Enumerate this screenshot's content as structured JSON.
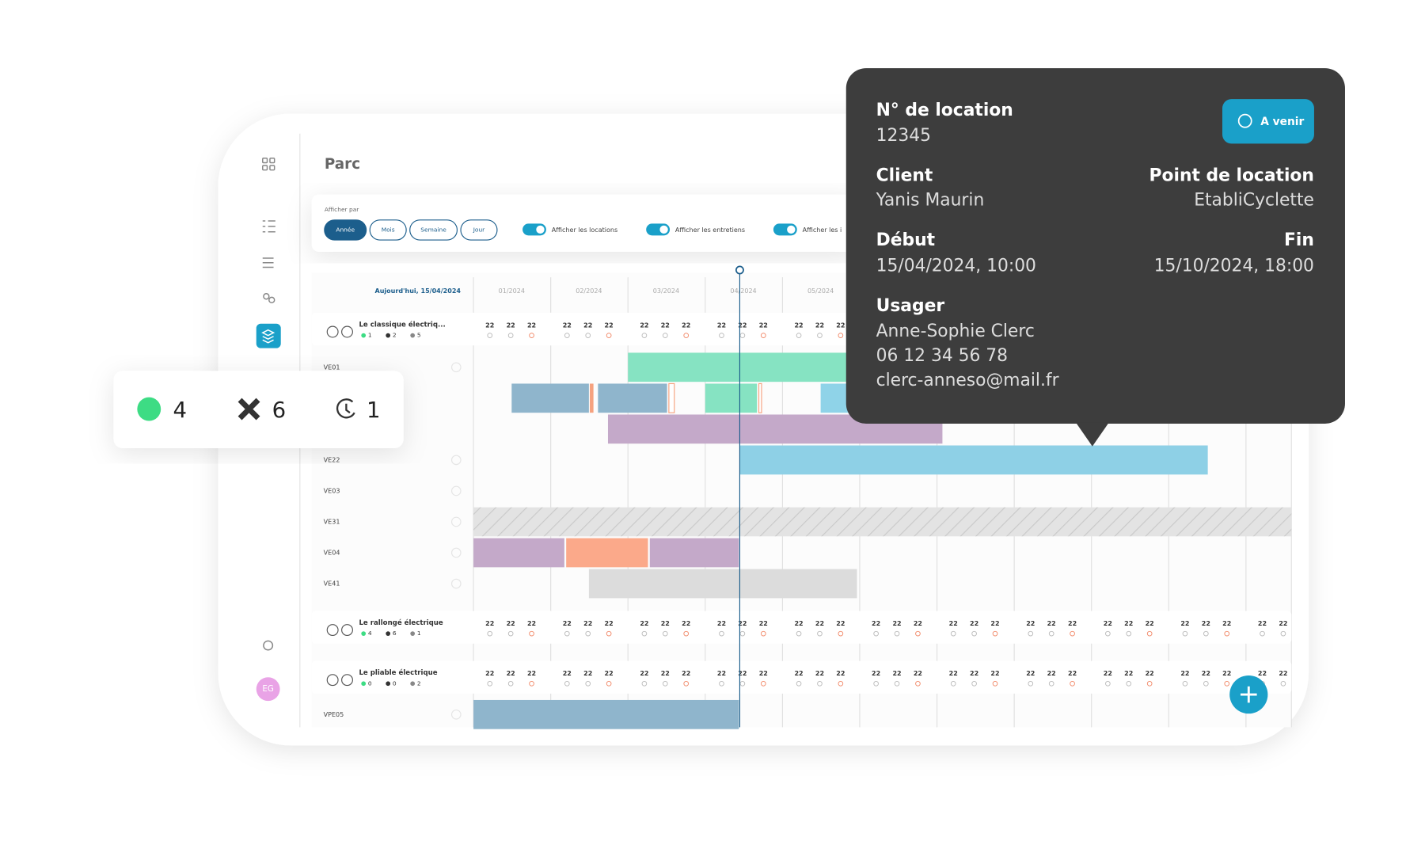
{
  "page": {
    "title": "Parc",
    "display_by": "Afficher par",
    "view_buttons": [
      "Année",
      "Mois",
      "Semaine",
      "Jour"
    ],
    "toggles": [
      "Afficher les locations",
      "Afficher les entretiens",
      "Afficher les i"
    ],
    "today": "Aujourd'hui, 15/04/2024",
    "months": [
      "01/2024",
      "02/2024",
      "03/2024",
      "04/2024",
      "05/2024"
    ],
    "day_label": "22",
    "groups": [
      {
        "name": "Le classique électriq...",
        "counts": [
          1,
          2,
          5
        ],
        "rows": [
          "VE01",
          "VE22",
          "VE03",
          "VE31",
          "VE04",
          "VE41"
        ]
      },
      {
        "name": "Le rallongé électrique",
        "counts": [
          4,
          6,
          1
        ],
        "rows": []
      },
      {
        "name": "Le pliable électrique",
        "counts": [
          0,
          0,
          2
        ],
        "rows": [
          "VPE05"
        ]
      }
    ],
    "avatar": "EG",
    "summary": [
      4,
      6,
      1
    ],
    "tooltip": {
      "rental_label": "N° de location",
      "rental_number": "12345",
      "status": "A venir",
      "client_label": "Client",
      "client": "Yanis Maurin",
      "location_label": "Point de location",
      "location": "EtabliCyclette",
      "start_label": "Début",
      "start": "15/04/2024, 10:00",
      "end_label": "Fin",
      "end": "15/10/2024, 18:00",
      "user_label": "Usager",
      "user": "Anne-Sophie Clerc",
      "phone": "06 12 34 56 78",
      "email": "clerc-anneso@mail.fr"
    }
  }
}
